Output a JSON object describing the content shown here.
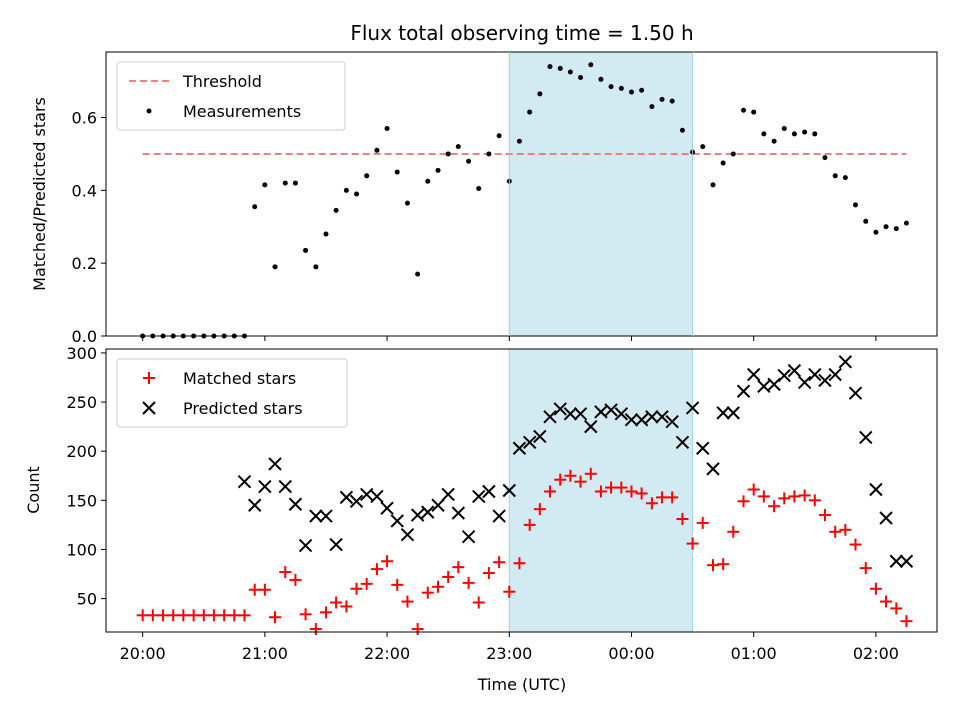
{
  "chart_data": [
    {
      "type": "scatter",
      "title": "Flux total observing time = 1.50 h",
      "ylabel": "Matched/Predicted stars",
      "ylim": [
        0,
        0.78
      ],
      "yticks": [
        "0.0",
        "0.2",
        "0.4",
        "0.6"
      ],
      "legend": [
        "Threshold",
        "Measurements"
      ],
      "legend_position": "top-left",
      "threshold": 0.5,
      "threshold_range_h": [
        0,
        6.25
      ],
      "highlight_h": [
        3.0,
        4.5
      ],
      "x_hours": [
        0,
        0.083,
        0.167,
        0.25,
        0.333,
        0.417,
        0.5,
        0.583,
        0.667,
        0.75,
        0.833,
        0.917,
        1.0,
        1.083,
        1.167,
        1.25,
        1.333,
        1.417,
        1.5,
        1.583,
        1.667,
        1.75,
        1.833,
        1.917,
        2.0,
        2.083,
        2.167,
        2.25,
        2.333,
        2.417,
        2.5,
        2.583,
        2.667,
        2.75,
        2.833,
        2.917,
        3.0,
        3.083,
        3.167,
        3.25,
        3.333,
        3.417,
        3.5,
        3.583,
        3.667,
        3.75,
        3.833,
        3.917,
        4.0,
        4.083,
        4.167,
        4.25,
        4.333,
        4.417,
        4.5,
        4.583,
        4.667,
        4.75,
        4.833,
        4.917,
        5.0,
        5.083,
        5.167,
        5.25,
        5.333,
        5.417,
        5.5,
        5.583,
        5.667,
        5.75,
        5.833,
        5.917,
        6.0,
        6.083,
        6.167,
        6.25
      ],
      "ratio": [
        0.0,
        0.0,
        0.0,
        0.0,
        0.0,
        0.0,
        0.0,
        0.0,
        0.0,
        0.0,
        0.0,
        0.355,
        0.415,
        0.19,
        0.42,
        0.42,
        0.235,
        0.19,
        0.28,
        0.345,
        0.4,
        0.39,
        0.44,
        0.51,
        0.57,
        0.45,
        0.365,
        0.17,
        0.425,
        0.455,
        0.5,
        0.52,
        0.48,
        0.405,
        0.5,
        0.55,
        0.425,
        0.535,
        0.615,
        0.665,
        0.74,
        0.735,
        0.725,
        0.71,
        0.745,
        0.705,
        0.685,
        0.68,
        0.67,
        0.675,
        0.63,
        0.65,
        0.645,
        0.565,
        0.505,
        0.52,
        0.415,
        0.475,
        0.5,
        0.62,
        0.615,
        0.555,
        0.535,
        0.57,
        0.555,
        0.56,
        0.555,
        0.49,
        0.44,
        0.435,
        0.36,
        0.315,
        0.285,
        0.3,
        0.295,
        0.31
      ]
    },
    {
      "type": "scatter",
      "xlabel": "Time (UTC)",
      "ylabel": "Count",
      "ylim": [
        16,
        304
      ],
      "yticks": [
        "50",
        "100",
        "150",
        "200",
        "250",
        "300"
      ],
      "xticks": [
        "20:00",
        "21:00",
        "22:00",
        "23:00",
        "00:00",
        "01:00",
        "02:00"
      ],
      "xlim_h": [
        -0.3,
        6.5
      ],
      "legend_position": "top-left",
      "highlight_h": [
        3.0,
        4.5
      ],
      "series": [
        {
          "name": "Matched stars",
          "color": "#ff0000",
          "marker": "+",
          "x_hours": [
            0,
            0.083,
            0.167,
            0.25,
            0.333,
            0.417,
            0.5,
            0.583,
            0.667,
            0.75,
            0.833,
            0.917,
            1.0,
            1.083,
            1.167,
            1.25,
            1.333,
            1.417,
            1.5,
            1.583,
            1.667,
            1.75,
            1.833,
            1.917,
            2.0,
            2.083,
            2.167,
            2.25,
            2.333,
            2.417,
            2.5,
            2.583,
            2.667,
            2.75,
            2.833,
            2.917,
            3.0,
            3.083,
            3.167,
            3.25,
            3.333,
            3.417,
            3.5,
            3.583,
            3.667,
            3.75,
            3.833,
            3.917,
            4.0,
            4.083,
            4.167,
            4.25,
            4.333,
            4.417,
            4.5,
            4.583,
            4.667,
            4.75,
            4.833,
            4.917,
            5.0,
            5.083,
            5.167,
            5.25,
            5.333,
            5.417,
            5.5,
            5.583,
            5.667,
            5.75,
            5.833,
            5.917,
            6.0,
            6.083,
            6.167,
            6.25
          ],
          "values": [
            33,
            33,
            33,
            33,
            33,
            33,
            33,
            33,
            33,
            33,
            33,
            59,
            59,
            31,
            77,
            69,
            34,
            19,
            36,
            46,
            42,
            60,
            65,
            80,
            88,
            64,
            47,
            19,
            56,
            62,
            72,
            82,
            66,
            46,
            76,
            87,
            57,
            86,
            125,
            141,
            159,
            171,
            175,
            169,
            177,
            159,
            163,
            163,
            159,
            157,
            147,
            153,
            153,
            131,
            106,
            127,
            84,
            85,
            118,
            149,
            161,
            154,
            144,
            152,
            154,
            155,
            150,
            135,
            118,
            120,
            105,
            81,
            60,
            47,
            40,
            27
          ]
        },
        {
          "name": "Predicted stars",
          "color": "#000000",
          "marker": "x",
          "x_hours": [
            0.833,
            0.917,
            1.0,
            1.083,
            1.167,
            1.25,
            1.333,
            1.417,
            1.5,
            1.583,
            1.667,
            1.75,
            1.833,
            1.917,
            2.0,
            2.083,
            2.167,
            2.25,
            2.333,
            2.417,
            2.5,
            2.583,
            2.667,
            2.75,
            2.833,
            2.917,
            3.0,
            3.083,
            3.167,
            3.25,
            3.333,
            3.417,
            3.5,
            3.583,
            3.667,
            3.75,
            3.833,
            3.917,
            4.0,
            4.083,
            4.167,
            4.25,
            4.333,
            4.417,
            4.5,
            4.583,
            4.667,
            4.75,
            4.833,
            4.917,
            5.0,
            5.083,
            5.167,
            5.25,
            5.333,
            5.417,
            5.5,
            5.583,
            5.667,
            5.75,
            5.833,
            5.917,
            6.0,
            6.083,
            6.167,
            6.25
          ],
          "values": [
            169,
            145,
            164,
            187,
            164,
            146,
            104,
            134,
            134,
            105,
            153,
            149,
            156,
            154,
            142,
            129,
            115,
            135,
            138,
            145,
            156,
            137,
            113,
            154,
            159,
            134,
            160,
            203,
            209,
            215,
            235,
            243,
            238,
            238,
            225,
            240,
            242,
            238,
            232,
            232,
            235,
            235,
            230,
            209,
            244,
            203,
            182,
            239,
            239,
            261,
            278,
            266,
            268,
            277,
            282,
            270,
            278,
            272,
            278,
            291,
            259,
            214,
            161,
            132,
            88,
            88
          ]
        }
      ]
    }
  ]
}
